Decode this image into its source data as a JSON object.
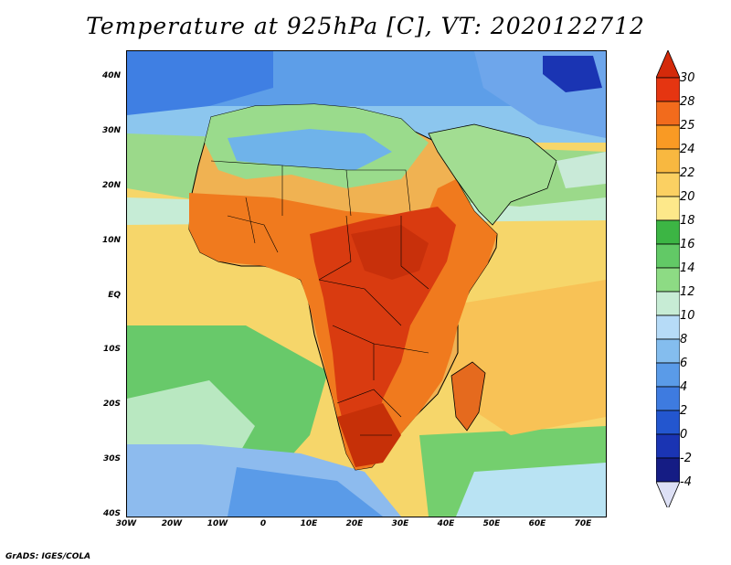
{
  "title": "Temperature at 925hPa [C], VT: 2020122712",
  "footer": "GrADS: IGES/COLA",
  "map": {
    "lat_labels": [
      "40N",
      "30N",
      "20N",
      "10N",
      "EQ",
      "10S",
      "20S",
      "30S",
      "40S"
    ],
    "lon_labels": [
      "30W",
      "20W",
      "10W",
      "0",
      "10E",
      "20E",
      "30E",
      "40E",
      "50E",
      "60E",
      "70E"
    ]
  },
  "colorbar": {
    "labels": [
      "30",
      "28",
      "25",
      "24",
      "22",
      "20",
      "18",
      "16",
      "14",
      "12",
      "10",
      "8",
      "6",
      "4",
      "2",
      "0",
      "-2",
      "-4"
    ],
    "colors": [
      "#e53511",
      "#f26b1c",
      "#f99a24",
      "#f8b840",
      "#fbd062",
      "#fde88a",
      "#3cb544",
      "#62c966",
      "#8ddb84",
      "#c7ecd5",
      "#b6dbf7",
      "#84bdee",
      "#5a9be8",
      "#3e7be0",
      "#2356cf",
      "#1a34b3",
      "#151c84"
    ],
    "over_color": "#d42a0a",
    "under_color": "#dde0f5"
  }
}
